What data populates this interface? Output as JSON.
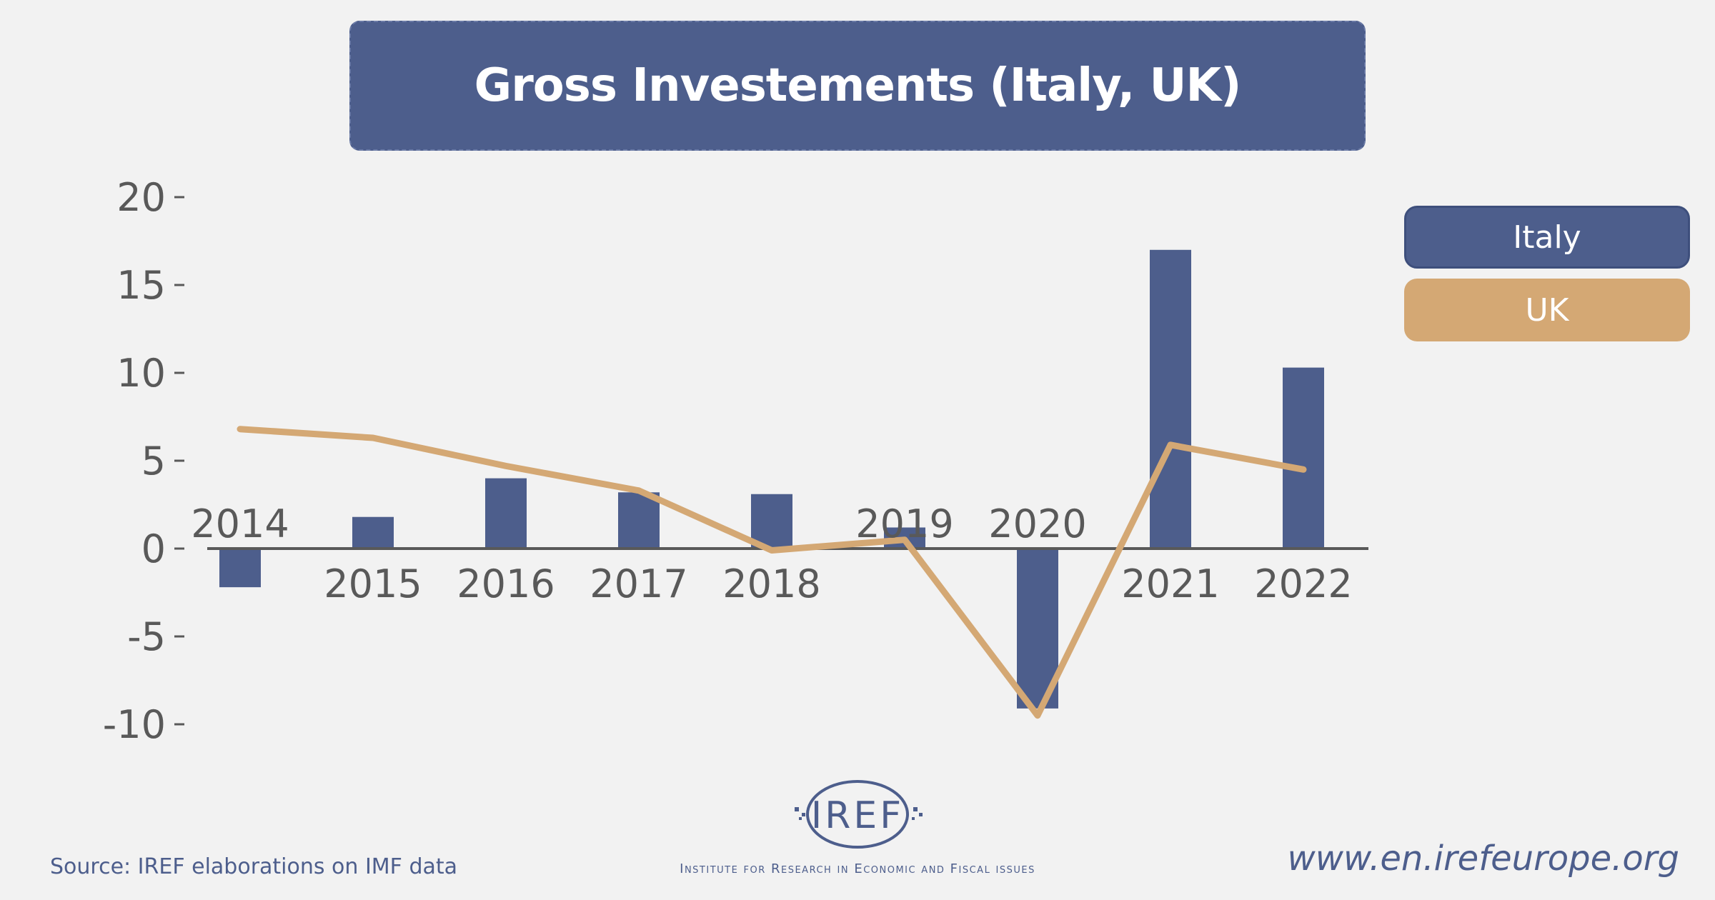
{
  "header": {
    "title": "Gross Investements (Italy, UK)"
  },
  "legend": {
    "items": [
      {
        "label": "Italy"
      },
      {
        "label": "UK"
      }
    ]
  },
  "footer": {
    "source": "Source: IREF elaborations on IMF data",
    "logo_text": "IREF",
    "institute": "Institute for Research in Economic and Fiscal issues",
    "website": "www.en.irefeurope.org"
  },
  "colors": {
    "italy": "#4d5e8c",
    "uk": "#d4a874",
    "axis": "#595959",
    "text": "#595959"
  },
  "chart_data": {
    "type": "bar",
    "categories": [
      "2014",
      "2015",
      "2016",
      "2017",
      "2018",
      "2019",
      "2020",
      "2021",
      "2022"
    ],
    "series": [
      {
        "name": "Italy",
        "type": "bar",
        "values": [
          -2.2,
          1.8,
          4.0,
          3.2,
          3.1,
          1.2,
          -9.1,
          17.0,
          10.3
        ]
      },
      {
        "name": "UK",
        "type": "line",
        "values": [
          6.8,
          6.3,
          4.7,
          3.3,
          -0.1,
          0.5,
          -9.5,
          5.9,
          4.5
        ]
      }
    ],
    "yticks": [
      "20",
      "15",
      "10",
      "5",
      "0",
      "-5",
      "-10"
    ],
    "ylim": [
      -10,
      20
    ],
    "legend_position": "right",
    "grid": false
  }
}
